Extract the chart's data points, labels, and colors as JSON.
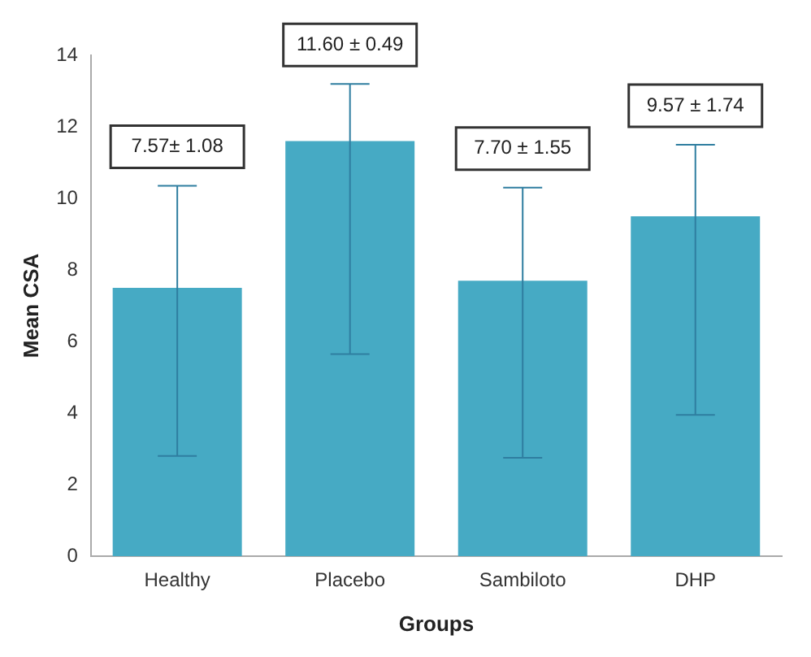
{
  "chart_data": {
    "type": "bar",
    "xlabel": "Groups",
    "ylabel": "Mean CSA",
    "categories": [
      "Healthy",
      "Placebo",
      "Sambiloto",
      "DHP"
    ],
    "values": [
      7.5,
      11.6,
      7.7,
      9.5
    ],
    "errors": [
      [
        2.8,
        10.35
      ],
      [
        5.65,
        13.2
      ],
      [
        2.75,
        10.3
      ],
      [
        3.95,
        11.5
      ]
    ],
    "color": "#46aac4",
    "ylim": [
      0,
      14
    ],
    "yticks": [
      0,
      2,
      4,
      6,
      8,
      10,
      12,
      14
    ],
    "grid": false,
    "legend": false,
    "annotations": [
      "7.57± 1.08",
      "11.60 ± 0.49",
      "7.70 ± 1.55",
      "9.57 ± 1.74"
    ]
  }
}
